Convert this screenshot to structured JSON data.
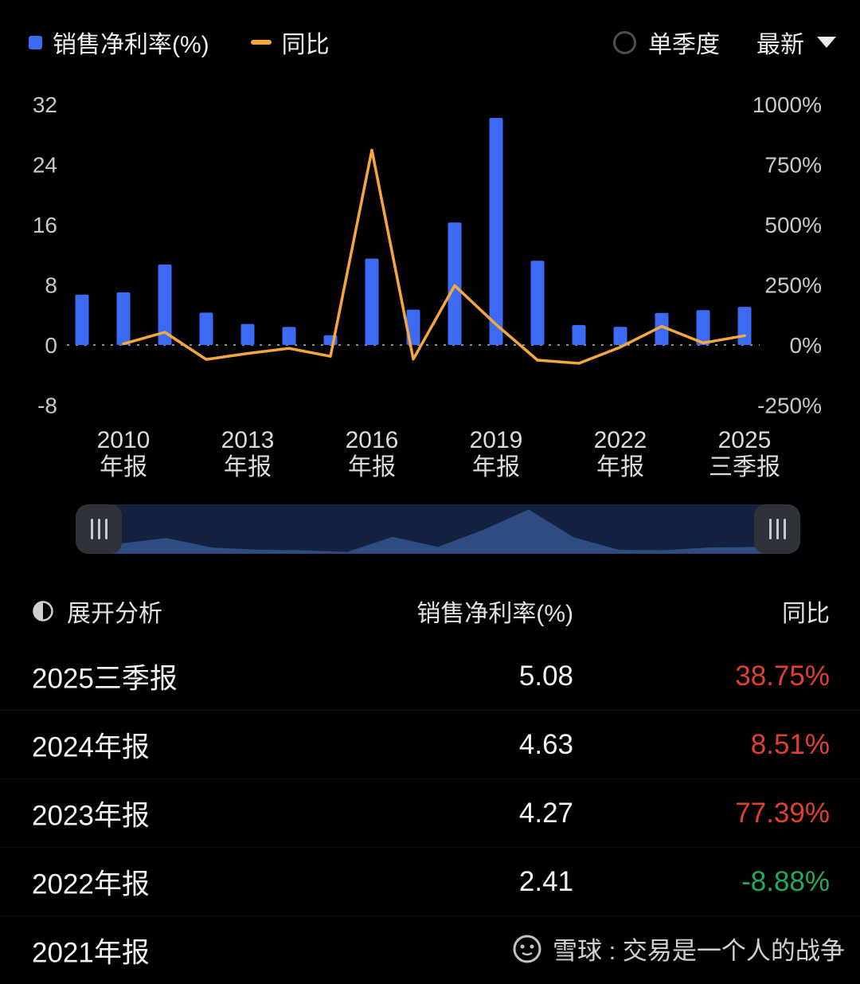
{
  "colors": {
    "background": "#000000",
    "bar": "#3D6AF2",
    "line": "#F6A73B",
    "up": "#E0412F",
    "down": "#21AB5B",
    "axis_text": "#C9C9C9",
    "nav_bg": "#15223F",
    "nav_area": "#2E4C82",
    "handle_bg": "#2F3238",
    "watermark": "#D0D0D0"
  },
  "legend": {
    "series1": "销售净利率(%)",
    "series2": "同比",
    "quarter_toggle": "单季度",
    "dropdown": "最新"
  },
  "chart_data": {
    "type": "bar+line",
    "x": [
      2009,
      2010,
      2011,
      2012,
      2013,
      2014,
      2015,
      2016,
      2017,
      2018,
      2019,
      2020,
      2021,
      2022,
      2023,
      2024,
      2025
    ],
    "series": [
      {
        "name": "销售净利率(%)",
        "type": "bar",
        "axis": "left",
        "values": [
          6.7,
          7.0,
          10.7,
          4.3,
          2.8,
          2.4,
          1.3,
          11.5,
          4.7,
          16.3,
          30.2,
          11.2,
          2.65,
          2.41,
          4.27,
          4.63,
          5.08
        ]
      },
      {
        "name": "同比",
        "type": "line",
        "axis": "right_pct",
        "values": [
          null,
          4.5,
          53,
          -60,
          -35,
          -14,
          -47,
          810,
          -59,
          247,
          85,
          -63,
          -76,
          -8.88,
          77.39,
          8.51,
          38.75
        ]
      }
    ],
    "left_axis": {
      "min": -8,
      "max": 32,
      "ticks": [
        32,
        24,
        16,
        8,
        0,
        -8
      ]
    },
    "right_axis": {
      "min": -250,
      "max": 1000,
      "ticks_pct": [
        1000,
        750,
        500,
        250,
        0,
        -250
      ]
    },
    "x_tick_labels": [
      {
        "year": 2010,
        "line1": "2010",
        "line2": "年报"
      },
      {
        "year": 2013,
        "line1": "2013",
        "line2": "年报"
      },
      {
        "year": 2016,
        "line1": "2016",
        "line2": "年报"
      },
      {
        "year": 2019,
        "line1": "2019",
        "line2": "年报"
      },
      {
        "year": 2022,
        "line1": "2022",
        "line2": "年报"
      },
      {
        "year": 2025,
        "line1": "2025",
        "line2": "三季报"
      }
    ],
    "zero_line": true,
    "legend_position": "top-left"
  },
  "table": {
    "expand_label": "展开分析",
    "col_value_header": "销售净利率(%)",
    "col_yoy_header": "同比",
    "rows": [
      {
        "period": "2025三季报",
        "value": "5.08",
        "yoy": "38.75%"
      },
      {
        "period": "2024年报",
        "value": "4.63",
        "yoy": "8.51%"
      },
      {
        "period": "2023年报",
        "value": "4.27",
        "yoy": "77.39%"
      },
      {
        "period": "2022年报",
        "value": "2.41",
        "yoy": "-8.88%"
      },
      {
        "period": "2021年报",
        "value": "",
        "yoy": ""
      }
    ]
  },
  "watermark": {
    "text": "雪球 : 交易是一个人的战争"
  }
}
